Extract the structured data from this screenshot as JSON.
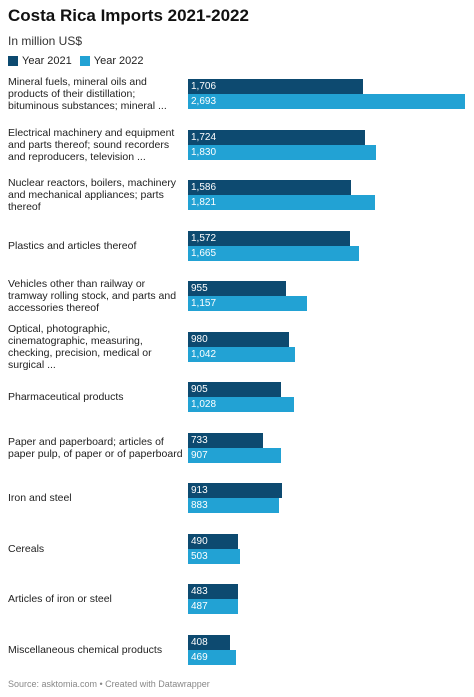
{
  "chart_data": {
    "type": "bar",
    "orientation": "horizontal",
    "title": "Costa Rica Imports 2021-2022",
    "subtitle": "In million US$",
    "source": "Source: asktomia.com • Created with Datawrapper",
    "categories": [
      "Mineral fuels, mineral oils and products of their distillation; bituminous substances; mineral ...",
      "Electrical machinery and equipment and parts thereof; sound recorders and reproducers, television ...",
      "Nuclear reactors, boilers, machinery and mechanical appliances; parts thereof",
      "Plastics and articles thereof",
      "Vehicles other than railway or tramway rolling stock, and parts and accessories thereof",
      "Optical, photographic, cinematographic, measuring, checking, precision, medical or surgical ...",
      "Pharmaceutical products",
      "Paper and paperboard; articles of paper pulp, of paper or of paperboard",
      "Iron and steel",
      "Cereals",
      "Articles of iron or steel",
      "Miscellaneous chemical products"
    ],
    "series": [
      {
        "name": "Year 2021",
        "color": "#0d4a70",
        "values": [
          1706,
          1724,
          1586,
          1572,
          955,
          980,
          905,
          733,
          913,
          490,
          483,
          408
        ],
        "value_labels": [
          "1,706",
          "1,724",
          "1,586",
          "1,572",
          "955",
          "980",
          "905",
          "733",
          "913",
          "490",
          "483",
          "408"
        ]
      },
      {
        "name": "Year 2022",
        "color": "#22a2d4",
        "values": [
          2693,
          1830,
          1821,
          1665,
          1157,
          1042,
          1028,
          907,
          883,
          503,
          487,
          469
        ],
        "value_labels": [
          "2,693",
          "1,830",
          "1,821",
          "1,665",
          "1,157",
          "1,042",
          "1,028",
          "907",
          "883",
          "503",
          "487",
          "469"
        ]
      }
    ]
  }
}
